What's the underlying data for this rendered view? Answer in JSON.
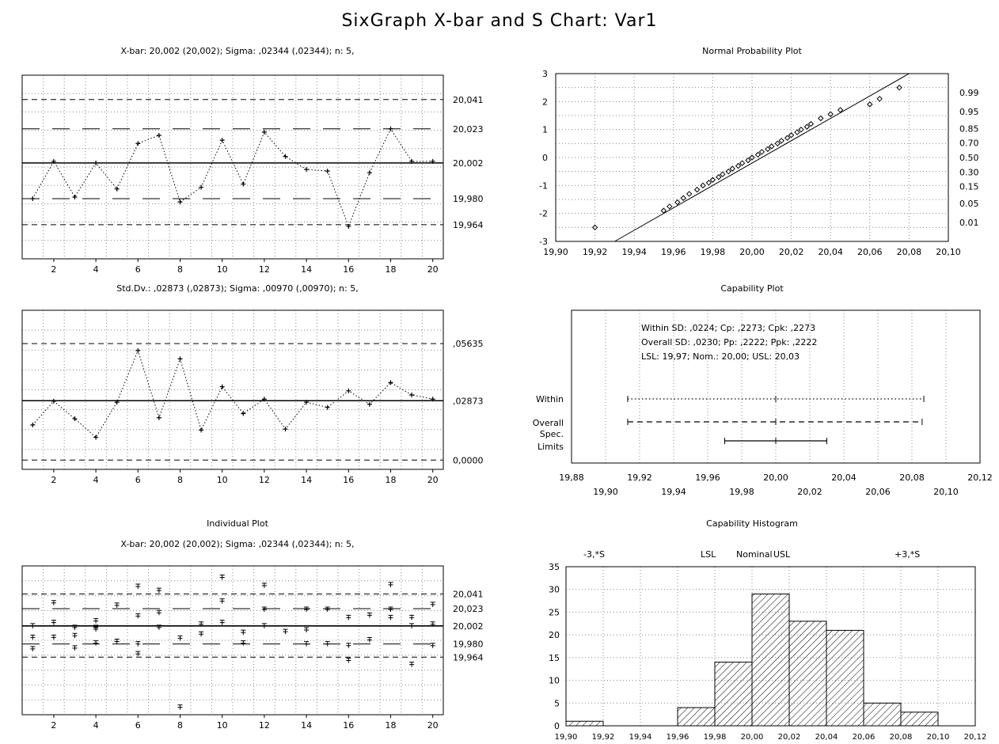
{
  "main_title": "SixGraph X-bar and S Chart: Var1",
  "charts": {
    "xbar": {
      "title": "X-bar: 20,002 (20,002); Sigma: ,02344 (,02344); n: 5,",
      "x_ticks": [
        "2",
        "4",
        "6",
        "8",
        "10",
        "12",
        "14",
        "16",
        "18",
        "20"
      ],
      "right_labels": [
        "20,041",
        "20,023",
        "20,002",
        "19,980",
        "19,964"
      ]
    },
    "normal": {
      "title": "Normal Probability Plot",
      "y_ticks": [
        "3",
        "2",
        "1",
        "0",
        "-1",
        "-2",
        "-3"
      ],
      "right_labels": [
        "0.99",
        "0.95",
        "0.85",
        "0.70",
        "0.50",
        "0.30",
        "0.15",
        "0.05",
        "0.01"
      ],
      "x_ticks": [
        "19,90",
        "19,92",
        "19,94",
        "19,96",
        "19,98",
        "20,00",
        "20,02",
        "20,04",
        "20,06",
        "20,08",
        "20,10"
      ]
    },
    "sd": {
      "title": "Std.Dv.: ,02873 (,02873); Sigma: ,00970 (,00970); n: 5,",
      "x_ticks": [
        "2",
        "4",
        "6",
        "8",
        "10",
        "12",
        "14",
        "16",
        "18",
        "20"
      ],
      "right_labels": [
        ",05635",
        ",02873",
        "0,0000"
      ]
    },
    "capability": {
      "title": "Capability Plot",
      "lines": [
        "Within SD: ,0224; Cp: ,2273; Cpk: ,2273",
        "Overall SD: ,0230; Pp: ,2222; Ppk: ,2222",
        "LSL: 19,97; Nom.: 20,00; USL: 20,03"
      ],
      "row_labels": [
        "Within",
        "Overall",
        "Spec.",
        "Limits"
      ],
      "x_ticks_top": [
        "19,88",
        "19,92",
        "19,96",
        "20,00",
        "20,04",
        "20,08",
        "20,12"
      ],
      "x_ticks_bottom": [
        "19,90",
        "19,94",
        "19,98",
        "20,02",
        "20,06",
        "20,10"
      ]
    },
    "individual": {
      "title": "Individual Plot",
      "subtitle": "X-bar: 20,002 (20,002); Sigma: ,02344 (,02344); n: 5,",
      "x_ticks": [
        "2",
        "4",
        "6",
        "8",
        "10",
        "12",
        "14",
        "16",
        "18",
        "20"
      ],
      "right_labels": [
        "20,041",
        "20,023",
        "20,002",
        "19,980",
        "19,964"
      ]
    },
    "histogram": {
      "title": "Capability Histogram",
      "top_labels": [
        "-3,*S",
        "LSL",
        "Nominal",
        "USL",
        "+3,*S"
      ],
      "y_ticks": [
        "35",
        "30",
        "25",
        "20",
        "15",
        "10",
        "5",
        "0"
      ],
      "x_ticks": [
        "19,90",
        "19,92",
        "19,94",
        "19,96",
        "19,98",
        "20,00",
        "20,02",
        "20,04",
        "20,06",
        "20,08",
        "20,10",
        "20,12"
      ]
    }
  },
  "chart_data": [
    {
      "type": "line",
      "title": "X-bar: 20,002 (20,002); Sigma: ,02344 (,02344); n: 5,",
      "x": [
        1,
        2,
        3,
        4,
        5,
        6,
        7,
        8,
        9,
        10,
        11,
        12,
        13,
        14,
        15,
        16,
        17,
        18,
        19,
        20
      ],
      "series": [
        {
          "values": [
            19.98,
            20.003,
            19.981,
            20.002,
            19.986,
            20.014,
            20.019,
            19.978,
            19.987,
            20.016,
            19.989,
            20.021,
            20.006,
            19.998,
            19.997,
            19.963,
            19.996,
            20.023,
            20.003,
            20.003
          ]
        }
      ],
      "center_line": 20.002,
      "limits": [
        20.041,
        20.023,
        19.98,
        19.964
      ],
      "ylim": [
        19.943,
        20.056
      ],
      "xlim": [
        0.5,
        20.5
      ]
    },
    {
      "type": "scatter",
      "title": "Normal Probability Plot",
      "x": [
        19.92,
        19.955,
        19.958,
        19.962,
        19.965,
        19.968,
        19.972,
        19.975,
        19.978,
        19.98,
        19.983,
        19.985,
        19.988,
        19.99,
        19.993,
        19.995,
        19.998,
        20.0,
        20.003,
        20.005,
        20.008,
        20.01,
        20.013,
        20.015,
        20.018,
        20.02,
        20.023,
        20.025,
        20.028,
        20.03,
        20.035,
        20.04,
        20.045,
        20.06,
        20.065,
        20.075
      ],
      "y": [
        -2.5,
        -1.9,
        -1.75,
        -1.6,
        -1.45,
        -1.3,
        -1.15,
        -1.0,
        -0.9,
        -0.8,
        -0.7,
        -0.6,
        -0.5,
        -0.4,
        -0.3,
        -0.2,
        -0.1,
        0.0,
        0.1,
        0.2,
        0.3,
        0.4,
        0.5,
        0.6,
        0.7,
        0.8,
        0.9,
        1.0,
        1.1,
        1.2,
        1.4,
        1.55,
        1.7,
        1.9,
        2.1,
        2.5
      ],
      "fit_line": [
        [
          19.93,
          -3.0
        ],
        [
          20.08,
          3.0
        ]
      ],
      "xlim": [
        19.9,
        20.1
      ],
      "ylim": [
        -3,
        3
      ]
    },
    {
      "type": "line",
      "title": "Std.Dv.: ,02873 (,02873); Sigma: ,00970 (,00970); n: 5,",
      "x": [
        1,
        2,
        3,
        4,
        5,
        6,
        7,
        8,
        9,
        10,
        11,
        12,
        13,
        14,
        15,
        16,
        17,
        18,
        19,
        20
      ],
      "series": [
        {
          "values": [
            0.017,
            0.0285,
            0.02,
            0.011,
            0.028,
            0.053,
            0.0205,
            0.049,
            0.0145,
            0.0355,
            0.0225,
            0.0295,
            0.015,
            0.028,
            0.0255,
            0.0335,
            0.027,
            0.0375,
            0.0315,
            0.0295
          ]
        }
      ],
      "center_line": 0.02873,
      "limits": [
        0.05635,
        0.0
      ],
      "ylim": [
        -0.0045,
        0.0725
      ],
      "xlim": [
        0.5,
        20.5
      ]
    },
    {
      "type": "line",
      "title": "Capability Plot",
      "series": [
        {
          "name": "Within",
          "range": [
            19.913,
            20.087
          ],
          "center": 20.0
        },
        {
          "name": "Overall",
          "range": [
            19.913,
            20.086
          ],
          "center": 20.0
        },
        {
          "name": "Spec. Limits",
          "range": [
            19.97,
            20.03
          ],
          "center": 20.0
        }
      ],
      "xlim": [
        19.88,
        20.12
      ]
    },
    {
      "type": "scatter",
      "title": "Individual Plot",
      "x": [
        1,
        1,
        1,
        2,
        2,
        2,
        3,
        3,
        3,
        4,
        4,
        4,
        4,
        5,
        5,
        6,
        6,
        6,
        6,
        7,
        7,
        7,
        8,
        8,
        9,
        9,
        10,
        10,
        10,
        11,
        11,
        12,
        12,
        12,
        13,
        14,
        14,
        14,
        15,
        15,
        16,
        16,
        16,
        17,
        17,
        18,
        18,
        18,
        19,
        19,
        19,
        20,
        20,
        20
      ],
      "y": [
        19.988,
        19.974,
        20.002,
        20.006,
        19.988,
        20.03,
        19.99,
        20.0,
        19.975,
        19.998,
        20.008,
        19.981,
        20.0,
        20.027,
        19.983,
        20.05,
        20.014,
        19.968,
        19.98,
        20.045,
        20.0,
        20.018,
        19.987,
        19.903,
        20.004,
        19.992,
        20.061,
        20.006,
        20.032,
        19.981,
        19.994,
        20.051,
        20.022,
        20.002,
        19.995,
        20.022,
        19.997,
        19.98,
        20.022,
        19.98,
        19.978,
        19.96,
        20.012,
        20.015,
        19.985,
        20.052,
        20.022,
        20.012,
        20.012,
        19.955,
        20.002,
        20.028,
        20.004,
        19.978
      ],
      "center_line": 20.002,
      "limits": [
        20.041,
        20.023,
        19.98,
        19.964
      ],
      "ylim": [
        19.894,
        20.075
      ],
      "xlim": [
        0.5,
        20.5
      ]
    },
    {
      "type": "bar",
      "title": "Capability Histogram",
      "categories": [
        "19,90",
        "19,92",
        "19,94",
        "19,96",
        "19,98",
        "20,00",
        "20,02",
        "20,04",
        "20,06",
        "20,08",
        "20,10"
      ],
      "bin_edges": [
        19.9,
        19.92,
        19.94,
        19.96,
        19.98,
        20.0,
        20.02,
        20.04,
        20.06,
        20.08,
        20.1,
        20.12
      ],
      "values": [
        1,
        0,
        0,
        4,
        14,
        29,
        23,
        21,
        5,
        3,
        0
      ],
      "ylim": [
        0,
        35
      ],
      "xlim": [
        19.9,
        20.12
      ]
    }
  ]
}
